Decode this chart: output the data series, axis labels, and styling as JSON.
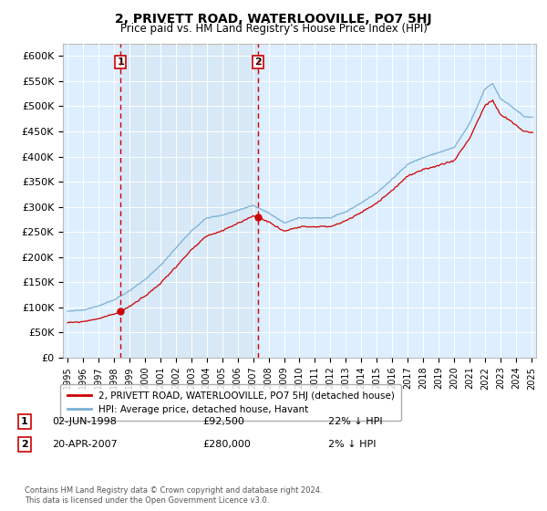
{
  "title": "2, PRIVETT ROAD, WATERLOOVILLE, PO7 5HJ",
  "subtitle": "Price paid vs. HM Land Registry's House Price Index (HPI)",
  "ylabel_ticks": [
    "£0",
    "£50K",
    "£100K",
    "£150K",
    "£200K",
    "£250K",
    "£300K",
    "£350K",
    "£400K",
    "£450K",
    "£500K",
    "£550K",
    "£600K"
  ],
  "ytick_values": [
    0,
    50000,
    100000,
    150000,
    200000,
    250000,
    300000,
    350000,
    400000,
    450000,
    500000,
    550000,
    600000
  ],
  "ylim": [
    0,
    625000
  ],
  "sale1": {
    "date_num": 1998.42,
    "price": 92500,
    "label": "1"
  },
  "sale2": {
    "date_num": 2007.3,
    "price": 280000,
    "label": "2"
  },
  "legend_line1": "2, PRIVETT ROAD, WATERLOOVILLE, PO7 5HJ (detached house)",
  "legend_line2": "HPI: Average price, detached house, Havant",
  "annotation1_date": "02-JUN-1998",
  "annotation1_price": "£92,500",
  "annotation1_hpi": "22% ↓ HPI",
  "annotation2_date": "20-APR-2007",
  "annotation2_price": "£280,000",
  "annotation2_hpi": "2% ↓ HPI",
  "footer": "Contains HM Land Registry data © Crown copyright and database right 2024.\nThis data is licensed under the Open Government Licence v3.0.",
  "line_color_red": "#cc0000",
  "line_color_blue": "#7ab0d4",
  "shade_color": "#d6e8f5",
  "background_color": "#ffffff",
  "plot_bg": "#ddeeff",
  "grid_color": "#ffffff",
  "xlim_start": 1994.7,
  "xlim_end": 2025.3
}
